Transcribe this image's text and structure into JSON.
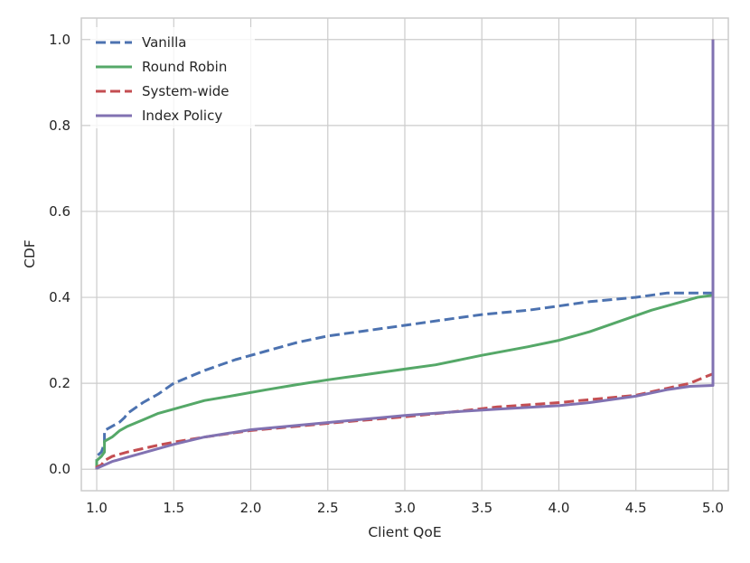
{
  "chart_data": {
    "type": "line",
    "subtype": "cdf",
    "title": "",
    "xlabel": "Client QoE",
    "ylabel": "CDF",
    "xlim": [
      0.9,
      5.1
    ],
    "ylim": [
      -0.05,
      1.05
    ],
    "xticks": [
      "1.0",
      "1.5",
      "2.0",
      "2.5",
      "3.0",
      "3.5",
      "4.0",
      "4.5",
      "5.0"
    ],
    "yticks": [
      "0.0",
      "0.2",
      "0.4",
      "0.6",
      "0.8",
      "1.0"
    ],
    "grid": true,
    "legend_position": "top-left",
    "series": [
      {
        "name": "Vanilla",
        "color": "#4c72b0",
        "dash": "dashed",
        "x": [
          1.0,
          1.0,
          1.03,
          1.05,
          1.05,
          1.1,
          1.15,
          1.18,
          1.2,
          1.3,
          1.4,
          1.5,
          1.7,
          1.9,
          2.1,
          2.3,
          2.5,
          2.7,
          3.0,
          3.3,
          3.5,
          3.8,
          4.0,
          4.2,
          4.5,
          4.7,
          4.95,
          5.0,
          5.0
        ],
        "y": [
          0.0,
          0.03,
          0.04,
          0.06,
          0.09,
          0.1,
          0.11,
          0.12,
          0.13,
          0.155,
          0.175,
          0.2,
          0.23,
          0.255,
          0.275,
          0.295,
          0.31,
          0.32,
          0.335,
          0.35,
          0.36,
          0.37,
          0.38,
          0.39,
          0.4,
          0.41,
          0.41,
          0.41,
          1.0
        ]
      },
      {
        "name": "Round Robin",
        "color": "#55a868",
        "dash": "solid",
        "x": [
          1.0,
          1.0,
          1.03,
          1.05,
          1.05,
          1.1,
          1.15,
          1.2,
          1.3,
          1.4,
          1.5,
          1.7,
          1.9,
          2.1,
          2.3,
          2.5,
          2.7,
          3.0,
          3.2,
          3.5,
          3.8,
          4.0,
          4.2,
          4.4,
          4.6,
          4.8,
          4.9,
          5.0,
          5.0
        ],
        "y": [
          0.0,
          0.02,
          0.03,
          0.04,
          0.065,
          0.075,
          0.09,
          0.1,
          0.115,
          0.13,
          0.14,
          0.16,
          0.172,
          0.185,
          0.197,
          0.208,
          0.218,
          0.233,
          0.243,
          0.265,
          0.285,
          0.3,
          0.32,
          0.345,
          0.37,
          0.39,
          0.4,
          0.405,
          1.0
        ]
      },
      {
        "name": "System-wide",
        "color": "#c44e52",
        "dash": "dashed",
        "x": [
          1.0,
          1.0,
          1.03,
          1.05,
          1.1,
          1.2,
          1.3,
          1.4,
          1.5,
          1.7,
          2.0,
          2.3,
          2.6,
          3.0,
          3.3,
          3.6,
          4.0,
          4.2,
          4.5,
          4.7,
          4.85,
          4.95,
          5.0,
          5.0
        ],
        "y": [
          0.0,
          0.005,
          0.01,
          0.02,
          0.03,
          0.04,
          0.048,
          0.056,
          0.063,
          0.075,
          0.09,
          0.1,
          0.11,
          0.122,
          0.133,
          0.145,
          0.155,
          0.162,
          0.172,
          0.188,
          0.2,
          0.215,
          0.222,
          1.0
        ]
      },
      {
        "name": "Index Policy",
        "color": "#8172b2",
        "dash": "solid",
        "x": [
          1.0,
          1.0,
          1.05,
          1.1,
          1.2,
          1.3,
          1.4,
          1.5,
          1.7,
          2.0,
          2.3,
          2.6,
          3.0,
          3.3,
          3.6,
          4.0,
          4.2,
          4.5,
          4.7,
          4.85,
          5.0,
          5.0
        ],
        "y": [
          0.0,
          0.002,
          0.01,
          0.018,
          0.028,
          0.038,
          0.048,
          0.058,
          0.075,
          0.092,
          0.102,
          0.112,
          0.125,
          0.133,
          0.14,
          0.148,
          0.155,
          0.17,
          0.185,
          0.193,
          0.195,
          1.0
        ]
      }
    ]
  }
}
